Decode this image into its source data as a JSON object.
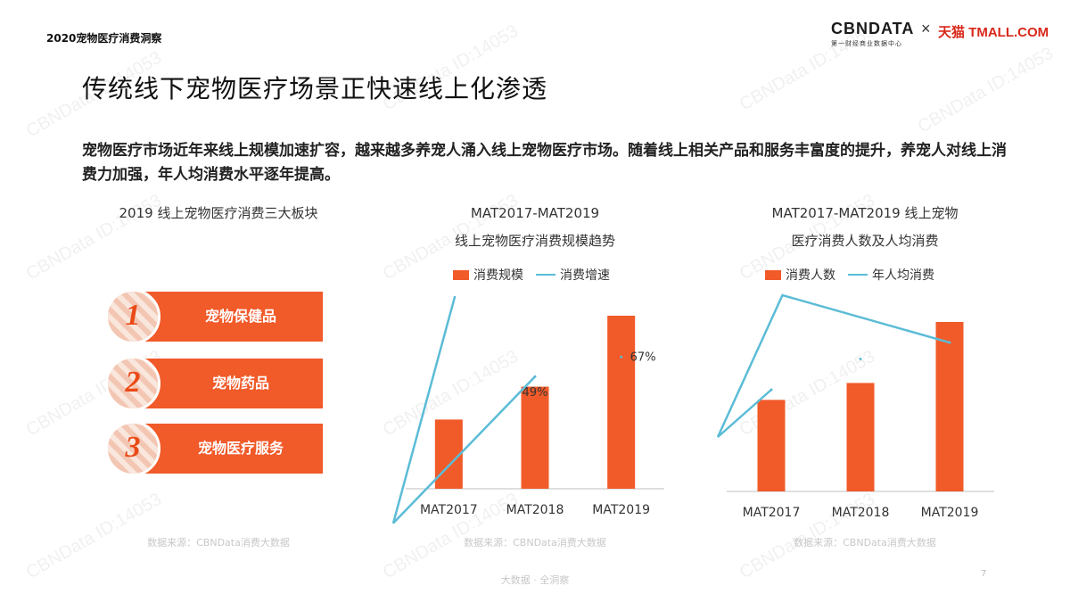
{
  "header": {
    "report_tag": "2020宠物医疗消费洞察",
    "logo_cbndata": "CBNDATA",
    "logo_cbndata_sub": "第一财经商业数据中心",
    "logo_times": "×",
    "logo_tmall": "天猫 TMALL.COM"
  },
  "watermark": "CBNData ID:14053",
  "page": {
    "title": "传统线下宠物医疗场景正快速线上化渗透",
    "intro": "宠物医疗市场近年来线上规模加速扩容，越来越多养宠人涌入线上宠物医疗市场。随着线上相关产品和服务丰富度的提升，养宠人对线上消费力加强，年人均消费水平逐年提高。"
  },
  "left_panel": {
    "title": "2019 线上宠物医疗消费三大板块",
    "items": [
      {
        "num": "1",
        "label": "宠物保健品"
      },
      {
        "num": "2",
        "label": "宠物药品"
      },
      {
        "num": "3",
        "label": "宠物医疗服务"
      }
    ],
    "source": "数据来源：CBNData消费大数据"
  },
  "colors": {
    "bar": "#f15a29",
    "line": "#5bbcd6",
    "axis": "#bfbfbf"
  },
  "chart_data": [
    {
      "type": "bar",
      "title_line1": "MAT2017-MAT2019",
      "title_line2": "线上宠物医疗消费规模趋势",
      "legend": [
        "消费规模",
        "消费增速"
      ],
      "categories": [
        "MAT2017",
        "MAT2018",
        "MAT2019"
      ],
      "series": [
        {
          "name": "消费规模",
          "kind": "bar",
          "values": [
            40,
            59,
            100
          ]
        },
        {
          "name": "消费增速",
          "kind": "line",
          "values": [
            null,
            49,
            67
          ]
        }
      ],
      "data_labels": [
        "",
        "49%",
        "67%"
      ],
      "units": "relative index (no axis printed)",
      "ylim": [
        0,
        100
      ],
      "line_ylim": [
        0,
        100
      ],
      "source": "数据来源：CBNData消费大数据"
    },
    {
      "type": "bar",
      "title_line1": "MAT2017-MAT2019 线上宠物",
      "title_line2": "医疗消费人数及人均消费",
      "legend": [
        "消费人数",
        "年人均消费"
      ],
      "categories": [
        "MAT2017",
        "MAT2018",
        "MAT2019"
      ],
      "series": [
        {
          "name": "消费人数",
          "kind": "bar",
          "values": [
            54,
            64,
            100
          ]
        },
        {
          "name": "年人均消费",
          "kind": "line",
          "values": [
            60,
            75,
            83
          ]
        }
      ],
      "units": "relative index (no axis printed)",
      "ylim": [
        0,
        100
      ],
      "line_ylim": [
        0,
        100
      ],
      "source": "数据来源：CBNData消费大数据"
    }
  ],
  "footer": {
    "text": "大数据 · 全洞察",
    "page_number": "7"
  }
}
